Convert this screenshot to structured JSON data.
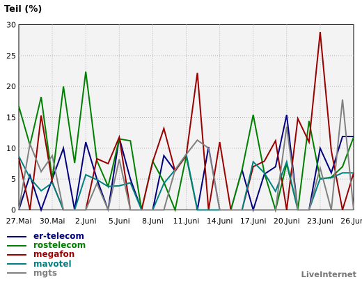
{
  "chart_data": {
    "type": "line",
    "ylabel": "Teil (%)",
    "ylim": [
      0,
      30
    ],
    "yticks": [
      0,
      5,
      10,
      15,
      20,
      25,
      30
    ],
    "grid": true,
    "legend_position": "bottom-left",
    "x": [
      "27.Mai",
      "28.Mai",
      "29.Mai",
      "30.Mai",
      "31.Mai",
      "1.Juni",
      "2.Juni",
      "3.Juni",
      "4.Juni",
      "5.Juni",
      "6.Juni",
      "7.Juni",
      "8.Juni",
      "9.Juni",
      "10.Juni",
      "11.Juni",
      "12.Juni",
      "13.Juni",
      "14.Juni",
      "15.Juni",
      "16.Juni",
      "17.Juni",
      "18.Juni",
      "19.Juni",
      "20.Juni",
      "21.Juni",
      "22.Juni",
      "23.Juni",
      "24.Juni",
      "25.Juni",
      "26.Juni"
    ],
    "xtick_labels": [
      "27.Mai",
      "30.Mai",
      "2.Juni",
      "5.Juni",
      "8.Juni",
      "11.Juni",
      "14.Juni",
      "17.Juni",
      "20.Juni",
      "23.Juni",
      "26.Juni"
    ],
    "series": [
      {
        "name": "er-telecom",
        "color": "#000080",
        "values": [
          0,
          5.6,
          0,
          5,
          10,
          0,
          11,
          5,
          0,
          11.7,
          5,
          0,
          0,
          8.8,
          6.3,
          9,
          0,
          10.2,
          0,
          0,
          6.5,
          0,
          5.8,
          7,
          15.4,
          0,
          0,
          10,
          6,
          11.9,
          11.9
        ]
      },
      {
        "name": "rostelecom",
        "color": "#008000",
        "values": [
          16.8,
          10.5,
          18.3,
          5,
          20,
          7.6,
          22.4,
          8,
          3.8,
          11.5,
          11.2,
          0,
          7.9,
          4.5,
          0,
          8.7,
          0,
          0,
          0,
          0,
          6.5,
          15.4,
          6,
          0,
          7.5,
          0,
          14.4,
          5,
          5.3,
          7,
          11.8
        ]
      },
      {
        "name": "megafon",
        "color": "#990000",
        "values": [
          8.4,
          0,
          15.3,
          4.5,
          0,
          0,
          0,
          8.3,
          7.5,
          11.8,
          0,
          0,
          7.8,
          13.2,
          6.3,
          8.8,
          22.2,
          0,
          11,
          0,
          0,
          7,
          7.9,
          11.2,
          0,
          14.8,
          11,
          28.8,
          9.6,
          0,
          6
        ]
      },
      {
        "name": "mavotel",
        "color": "#008080",
        "values": [
          8.7,
          5.2,
          3.1,
          4.4,
          0,
          0,
          5.7,
          4.9,
          3.8,
          3.9,
          4.4,
          0,
          0,
          4.3,
          6.5,
          9,
          0,
          0,
          0,
          0,
          0,
          7.8,
          6,
          3,
          7.8,
          0,
          0,
          5.1,
          5.2,
          6,
          6
        ]
      },
      {
        "name": "mgts",
        "color": "#808080",
        "values": [
          0,
          10.7,
          6.2,
          8.8,
          0,
          0,
          0,
          4.3,
          0,
          8.2,
          0,
          0,
          0,
          0,
          6.5,
          9,
          11.3,
          10,
          0,
          0,
          0,
          0,
          0,
          0,
          13.5,
          0,
          0,
          6.8,
          0,
          17.9,
          0
        ]
      }
    ]
  },
  "brand": "LiveInternet"
}
